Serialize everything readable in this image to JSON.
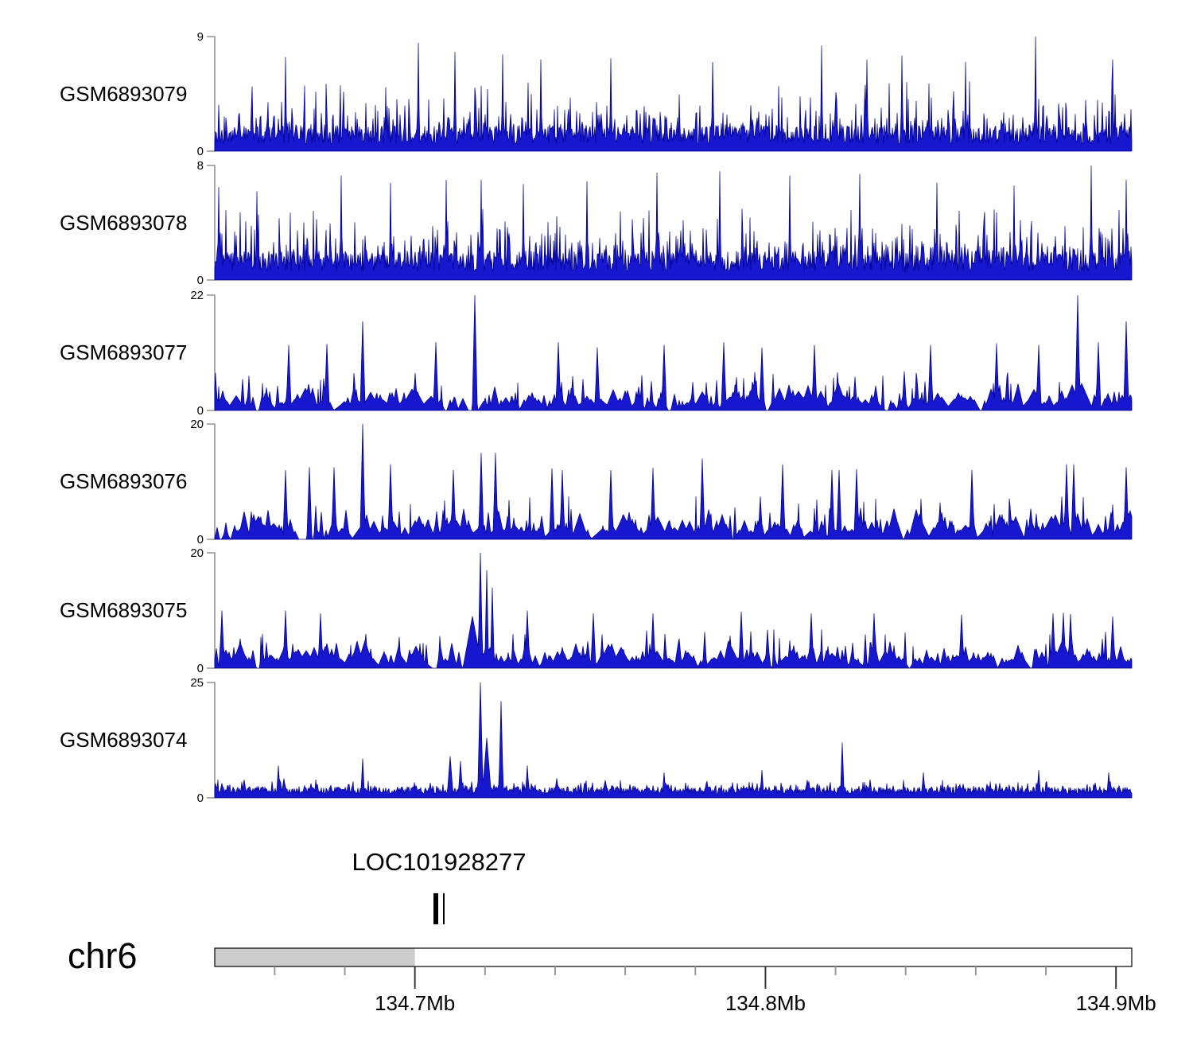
{
  "figure": {
    "kind": "genome-browser-coverage-figure",
    "background": "#ffffff"
  },
  "colors": {
    "signal_fill": "#1717d0",
    "signal_stroke": "#00008b",
    "axis_line": "#7d7d7d",
    "tick_label": "#000000",
    "chrom_bar_stroke": "#000000",
    "chrom_bar_fill": "#ffffff",
    "chrom_highlight_fill": "#cccccc",
    "major_tick": "#3a3a3a",
    "minor_tick": "#999999"
  },
  "chart_data": {
    "type": "area",
    "x_axis": {
      "unit": "Mb",
      "x_range_mb": [
        134.6429,
        134.9045
      ],
      "major_ticks_mb": [
        134.7,
        134.8,
        134.9
      ],
      "tick_labels": [
        "134.7Mb",
        "134.8Mb",
        "134.9Mb"
      ],
      "minor_tick_interval_mb": 0.02,
      "minor_ticks_mb": [
        134.66,
        134.68,
        134.72,
        134.74,
        134.76,
        134.78,
        134.82,
        134.84,
        134.86,
        134.88
      ]
    },
    "tracks": [
      {
        "name": "GSM6893079",
        "ylim": [
          0,
          9
        ],
        "ymax_label": "9",
        "ymin_label": "0",
        "style": "bars",
        "seed": 101,
        "noise": {
          "base": 0.55,
          "jitter": 1.5,
          "burst_p": 0.3,
          "burst_amp": 2.0,
          "tall_p": 0.05,
          "tall_lo": 3.2,
          "tall_amp": 2.3
        },
        "peaks": [
          [
            134.663,
            7.4
          ],
          [
            134.701,
            8.5
          ],
          [
            134.7115,
            7.8
          ],
          [
            134.725,
            7.6
          ],
          [
            134.736,
            7.2
          ],
          [
            134.756,
            7.3
          ],
          [
            134.785,
            7.0
          ],
          [
            134.816,
            8.3
          ],
          [
            134.829,
            7.2
          ],
          [
            134.839,
            7.5
          ],
          [
            134.857,
            7.0
          ],
          [
            134.877,
            9.0
          ],
          [
            134.899,
            7.2
          ]
        ]
      },
      {
        "name": "GSM6893078",
        "ylim": [
          0,
          8
        ],
        "ymax_label": "8",
        "ymin_label": "0",
        "style": "bars",
        "seed": 202,
        "noise": {
          "base": 0.55,
          "jitter": 1.5,
          "burst_p": 0.3,
          "burst_amp": 1.9,
          "tall_p": 0.05,
          "tall_lo": 2.9,
          "tall_amp": 2.1
        },
        "peaks": [
          [
            134.644,
            6.5
          ],
          [
            134.655,
            6.2
          ],
          [
            134.679,
            7.3
          ],
          [
            134.693,
            6.8
          ],
          [
            134.709,
            7.0
          ],
          [
            134.719,
            7.0
          ],
          [
            134.731,
            6.7
          ],
          [
            134.749,
            6.9
          ],
          [
            134.769,
            7.5
          ],
          [
            134.787,
            7.6
          ],
          [
            134.807,
            7.3
          ],
          [
            134.827,
            7.4
          ],
          [
            134.849,
            6.8
          ],
          [
            134.871,
            6.6
          ],
          [
            134.893,
            8.0
          ],
          [
            134.903,
            7.0
          ]
        ]
      },
      {
        "name": "GSM6893077",
        "ylim": [
          0,
          22
        ],
        "ymax_label": "22",
        "ymin_label": "0",
        "style": "tri",
        "seed": 303,
        "noise": {
          "events": 330,
          "w_lo": 3,
          "w_amp": 15,
          "h_lo": 1.5,
          "h_amp": 4.0,
          "spikes": 45,
          "spike_h_lo": 4.0,
          "spike_h_amp": 3.5
        },
        "peaks": [
          [
            134.664,
            12.5
          ],
          [
            134.675,
            12.7
          ],
          [
            134.685,
            17
          ],
          [
            134.706,
            13
          ],
          [
            134.717,
            22
          ],
          [
            134.741,
            13
          ],
          [
            134.752,
            12
          ],
          [
            134.771,
            12.5
          ],
          [
            134.788,
            13
          ],
          [
            134.799,
            12
          ],
          [
            134.814,
            12.5
          ],
          [
            134.847,
            12.5
          ],
          [
            134.866,
            12.8
          ],
          [
            134.878,
            12.5
          ],
          [
            134.889,
            22
          ],
          [
            134.895,
            13
          ],
          [
            134.903,
            17
          ]
        ]
      },
      {
        "name": "GSM6893076",
        "ylim": [
          0,
          20
        ],
        "ymax_label": "20",
        "ymin_label": "0",
        "style": "tri",
        "seed": 404,
        "noise": {
          "events": 310,
          "w_lo": 3,
          "w_amp": 16,
          "h_lo": 1.4,
          "h_amp": 4.2,
          "spikes": 40,
          "spike_h_lo": 4.0,
          "spike_h_amp": 3.5
        },
        "peaks": [
          [
            134.663,
            12
          ],
          [
            134.67,
            12.5
          ],
          [
            134.677,
            12.5
          ],
          [
            134.685,
            20
          ],
          [
            134.693,
            13
          ],
          [
            134.711,
            12
          ],
          [
            134.719,
            15
          ],
          [
            134.723,
            15
          ],
          [
            134.739,
            12.3
          ],
          [
            134.742,
            12
          ],
          [
            134.756,
            12
          ],
          [
            134.768,
            12.4
          ],
          [
            134.782,
            14
          ],
          [
            134.805,
            13
          ],
          [
            134.819,
            12
          ],
          [
            134.821,
            12
          ],
          [
            134.826,
            12.2
          ],
          [
            134.859,
            12
          ],
          [
            134.886,
            13
          ],
          [
            134.888,
            13
          ],
          [
            134.903,
            12.5
          ]
        ]
      },
      {
        "name": "GSM6893075",
        "ylim": [
          0,
          20
        ],
        "ymax_label": "20",
        "ymin_label": "0",
        "style": "tri",
        "seed": 505,
        "noise": {
          "events": 330,
          "w_lo": 3,
          "w_amp": 14,
          "h_lo": 1.3,
          "h_amp": 4.0,
          "spikes": 40,
          "spike_h_lo": 3.8,
          "spike_h_amp": 3.0
        },
        "peaks": [
          [
            134.645,
            10
          ],
          [
            134.663,
            10
          ],
          [
            134.673,
            9.5
          ],
          [
            134.7186,
            20,
            3
          ],
          [
            134.7205,
            17,
            2.5
          ],
          [
            134.722,
            14,
            2.5
          ],
          [
            134.7165,
            9,
            12
          ],
          [
            134.732,
            10
          ],
          [
            134.751,
            9.5
          ],
          [
            134.768,
            9.5
          ],
          [
            134.793,
            9.8
          ],
          [
            134.813,
            9.5
          ],
          [
            134.831,
            9.5
          ],
          [
            134.856,
            9.3
          ],
          [
            134.882,
            9.5
          ],
          [
            134.885,
            9.6
          ],
          [
            134.887,
            9.4
          ],
          [
            134.899,
            9.0
          ]
        ]
      },
      {
        "name": "GSM6893074",
        "ylim": [
          0,
          25
        ],
        "ymax_label": "25",
        "ymin_label": "0",
        "style": "fine",
        "seed": 606,
        "noise": {
          "base": 0.8,
          "jitter": 1.6,
          "burst_p": 0.18,
          "burst_amp": 1.8,
          "events": 170,
          "ev_w_lo": 1.5,
          "ev_w_amp": 3.0,
          "ev_h_lo": 1.2,
          "ev_h_amp": 3.3
        },
        "peaks": [
          [
            134.7186,
            25,
            3.5
          ],
          [
            134.7205,
            13,
            6
          ],
          [
            134.7245,
            21,
            3
          ],
          [
            134.71,
            9,
            4
          ],
          [
            134.661,
            7,
            2.5
          ],
          [
            134.685,
            8.5,
            2.5
          ],
          [
            134.713,
            8,
            3
          ],
          [
            134.732,
            7,
            2.5
          ],
          [
            134.771,
            5.5,
            2.5
          ],
          [
            134.799,
            6,
            2.5
          ],
          [
            134.822,
            12,
            2.5
          ],
          [
            134.845,
            5.5,
            2.5
          ],
          [
            134.878,
            6,
            2.5
          ],
          [
            134.898,
            5.5,
            2.5
          ]
        ]
      }
    ],
    "gene_track": {
      "label": "LOC101928277",
      "features_mb": [
        134.7059,
        134.7077
      ]
    },
    "chromosome": {
      "name": "chr6",
      "highlight_region_mb": [
        134.6429,
        134.7
      ]
    }
  }
}
